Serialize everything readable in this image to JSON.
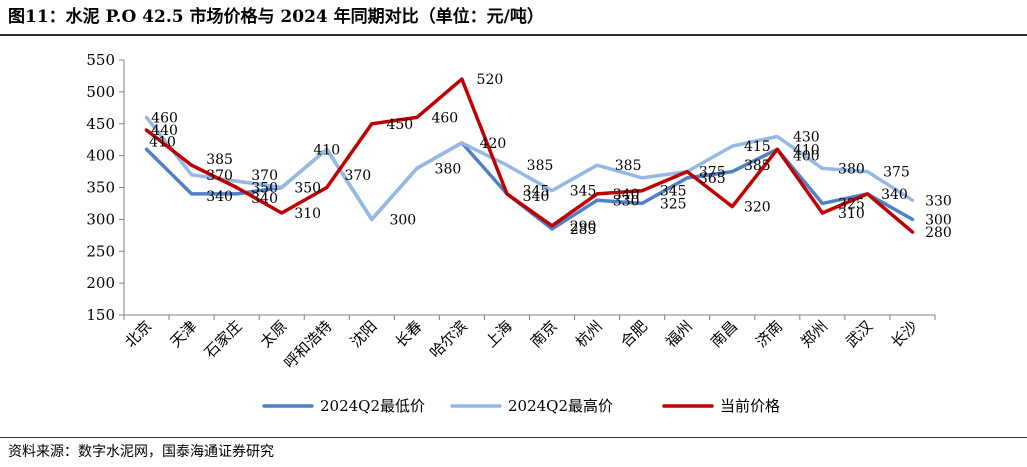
{
  "header": {
    "title": "图11：水泥 P.O 42.5 市场价格与 2024 年同期对比（单位：元/吨）"
  },
  "footer": {
    "source": "资料来源：数字水泥网，国泰海通证券研究"
  },
  "chart_data": {
    "type": "line",
    "categories": [
      "北京",
      "天津",
      "石家庄",
      "太原",
      "呼和浩特",
      "沈阳",
      "长春",
      "哈尔滨",
      "上海",
      "南京",
      "杭州",
      "合肥",
      "福州",
      "南昌",
      "济南",
      "郑州",
      "武汉",
      "长沙"
    ],
    "ylim": [
      150,
      550
    ],
    "yticks": [
      150,
      200,
      250,
      300,
      350,
      400,
      450,
      500,
      550
    ],
    "grid": false,
    "legend_position": "bottom",
    "series": [
      {
        "name": "2024Q2最低价",
        "color": "#4f81c7",
        "values": [
          410,
          340,
          340,
          350,
          410,
          300,
          380,
          420,
          340,
          285,
          330,
          325,
          365,
          375,
          410,
          325,
          340,
          300
        ]
      },
      {
        "name": "2024Q2最高价",
        "color": "#95b9e4",
        "values": [
          460,
          370,
          360,
          350,
          410,
          300,
          380,
          420,
          385,
          345,
          385,
          365,
          375,
          415,
          430,
          380,
          375,
          330
        ]
      },
      {
        "name": "当前价格",
        "color": "#c00000",
        "values": [
          440,
          385,
          350,
          310,
          350,
          450,
          460,
          520,
          340,
          290,
          340,
          345,
          375,
          320,
          410,
          310,
          340,
          280
        ]
      }
    ],
    "labels": [
      {
        "text": "460",
        "cat": 0,
        "y": 460,
        "dx": 18,
        "dy": 0
      },
      {
        "text": "440",
        "cat": 0,
        "y": 440,
        "dx": 18,
        "dy": 0
      },
      {
        "text": "410",
        "cat": 0,
        "y": 410,
        "dx": 16,
        "dy": -8
      },
      {
        "text": "385",
        "cat": 1,
        "y": 385,
        "dx": 28,
        "dy": -6
      },
      {
        "text": "370",
        "cat": 1,
        "y": 370,
        "dx": 28,
        "dy": 0
      },
      {
        "text": "340",
        "cat": 1,
        "y": 340,
        "dx": 28,
        "dy": 2
      },
      {
        "text": "370",
        "cat": 2,
        "y": 370,
        "dx": 28,
        "dy": 0
      },
      {
        "text": "350",
        "cat": 2,
        "y": 350,
        "dx": 28,
        "dy": 0
      },
      {
        "text": "340",
        "cat": 2,
        "y": 340,
        "dx": 28,
        "dy": 4
      },
      {
        "text": "350",
        "cat": 3,
        "y": 350,
        "dx": 26,
        "dy": 0
      },
      {
        "text": "310",
        "cat": 3,
        "y": 310,
        "dx": 26,
        "dy": 0
      },
      {
        "text": "410",
        "cat": 4,
        "y": 410,
        "dx": 0,
        "dy": 0
      },
      {
        "text": "370",
        "cat": 5,
        "y": 370,
        "dx": -14,
        "dy": 0
      },
      {
        "text": "450",
        "cat": 5,
        "y": 450,
        "dx": 28,
        "dy": 0
      },
      {
        "text": "300",
        "cat": 6,
        "y": 300,
        "dx": -14,
        "dy": 0
      },
      {
        "text": "460",
        "cat": 6,
        "y": 460,
        "dx": 28,
        "dy": 0
      },
      {
        "text": "380",
        "cat": 7,
        "y": 380,
        "dx": -14,
        "dy": 0
      },
      {
        "text": "520",
        "cat": 7,
        "y": 520,
        "dx": 28,
        "dy": 0
      },
      {
        "text": "420",
        "cat": 8,
        "y": 420,
        "dx": -14,
        "dy": 0
      },
      {
        "text": "385",
        "cat": 9,
        "y": 385,
        "dx": -12,
        "dy": 0
      },
      {
        "text": "345",
        "cat": 9,
        "y": 345,
        "dx": -16,
        "dy": 0
      },
      {
        "text": "340",
        "cat": 9,
        "y": 340,
        "dx": -16,
        "dy": 2
      },
      {
        "text": "345",
        "cat": 10,
        "y": 345,
        "dx": -14,
        "dy": 0
      },
      {
        "text": "290",
        "cat": 10,
        "y": 290,
        "dx": -14,
        "dy": 0
      },
      {
        "text": "285",
        "cat": 10,
        "y": 285,
        "dx": -14,
        "dy": 0
      },
      {
        "text": "385",
        "cat": 11,
        "y": 385,
        "dx": -14,
        "dy": 0
      },
      {
        "text": "340",
        "cat": 11,
        "y": 340,
        "dx": -16,
        "dy": 0
      },
      {
        "text": "330",
        "cat": 11,
        "y": 330,
        "dx": -16,
        "dy": 0
      },
      {
        "text": "345",
        "cat": 12,
        "y": 345,
        "dx": -14,
        "dy": 0
      },
      {
        "text": "325",
        "cat": 12,
        "y": 325,
        "dx": -14,
        "dy": 0
      },
      {
        "text": "365",
        "cat": 13,
        "y": 365,
        "dx": -20,
        "dy": 0
      },
      {
        "text": "375",
        "cat": 13,
        "y": 375,
        "dx": -20,
        "dy": 0
      },
      {
        "text": "415",
        "cat": 14,
        "y": 415,
        "dx": -20,
        "dy": 0
      },
      {
        "text": "385",
        "cat": 14,
        "y": 385,
        "dx": -20,
        "dy": 0
      },
      {
        "text": "320",
        "cat": 14,
        "y": 320,
        "dx": -20,
        "dy": 0
      },
      {
        "text": "430",
        "cat": 15,
        "y": 430,
        "dx": -16,
        "dy": 0
      },
      {
        "text": "410",
        "cat": 15,
        "y": 410,
        "dx": -16,
        "dy": 0
      },
      {
        "text": "400",
        "cat": 15,
        "y": 400,
        "dx": -16,
        "dy": 0
      },
      {
        "text": "380",
        "cat": 16,
        "y": 380,
        "dx": -16,
        "dy": 0
      },
      {
        "text": "325",
        "cat": 16,
        "y": 325,
        "dx": -16,
        "dy": 0
      },
      {
        "text": "310",
        "cat": 16,
        "y": 310,
        "dx": -16,
        "dy": 0
      },
      {
        "text": "375",
        "cat": 17,
        "y": 375,
        "dx": -16,
        "dy": 0
      },
      {
        "text": "340",
        "cat": 17,
        "y": 340,
        "dx": -18,
        "dy": 0
      },
      {
        "text": "330",
        "cat": 17,
        "y": 330,
        "dx": 26,
        "dy": 0
      },
      {
        "text": "300",
        "cat": 17,
        "y": 300,
        "dx": 26,
        "dy": 0
      },
      {
        "text": "280",
        "cat": 17,
        "y": 280,
        "dx": 26,
        "dy": 0
      }
    ]
  }
}
